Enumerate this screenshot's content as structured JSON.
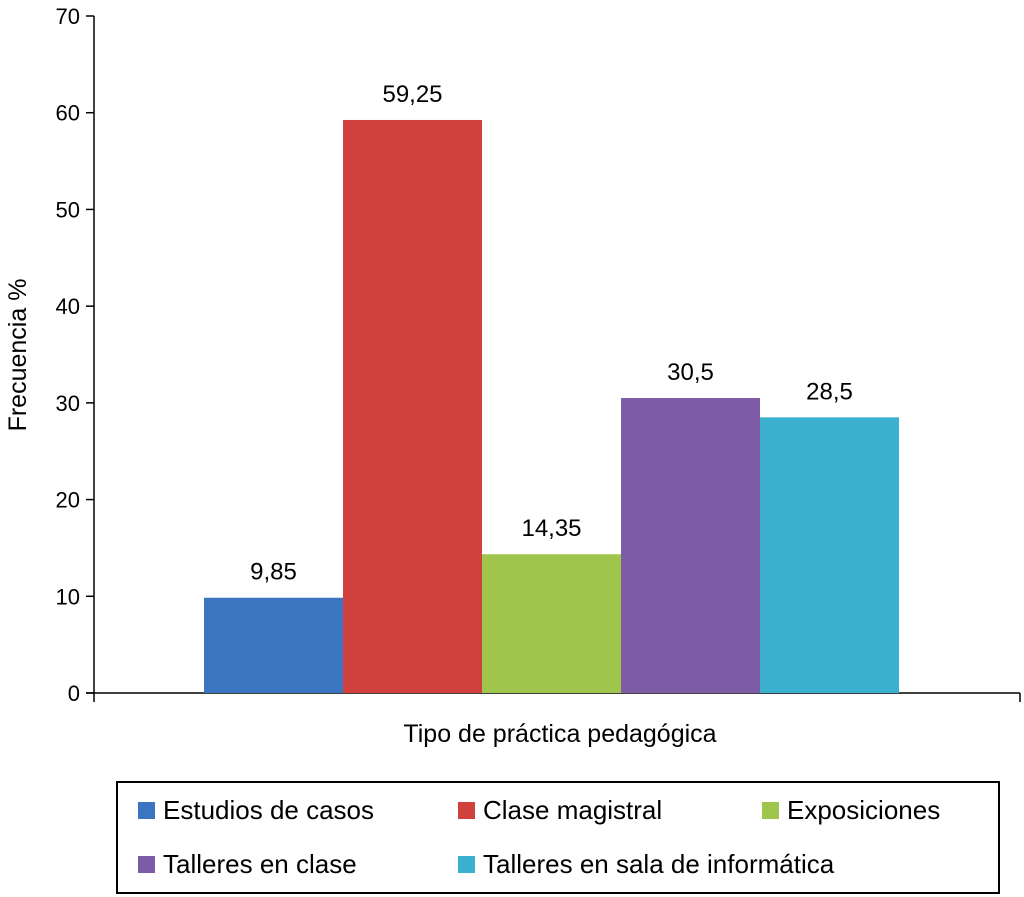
{
  "chart_data": {
    "type": "bar",
    "title": "",
    "xlabel": "Tipo de práctica pedagógica",
    "ylabel": "Frecuencia %",
    "ylim": [
      0,
      70
    ],
    "yticks": [
      0,
      10,
      20,
      30,
      40,
      50,
      60,
      70
    ],
    "grid": false,
    "legend_position": "bottom",
    "series": [
      {
        "name": "Estudios de casos",
        "value": 9.85,
        "label": "9,85",
        "color": "#3b75c1"
      },
      {
        "name": "Clase magistral",
        "value": 59.25,
        "label": "59,25",
        "color": "#d0413d"
      },
      {
        "name": "Exposiciones",
        "value": 14.35,
        "label": "14,35",
        "color": "#9fc54c"
      },
      {
        "name": "Talleres en clase",
        "value": 30.5,
        "label": "30,5",
        "color": "#7e5ba7"
      },
      {
        "name": "Talleres en sala de informática",
        "value": 28.5,
        "label": "28,5",
        "color": "#3bb1cf"
      }
    ]
  }
}
